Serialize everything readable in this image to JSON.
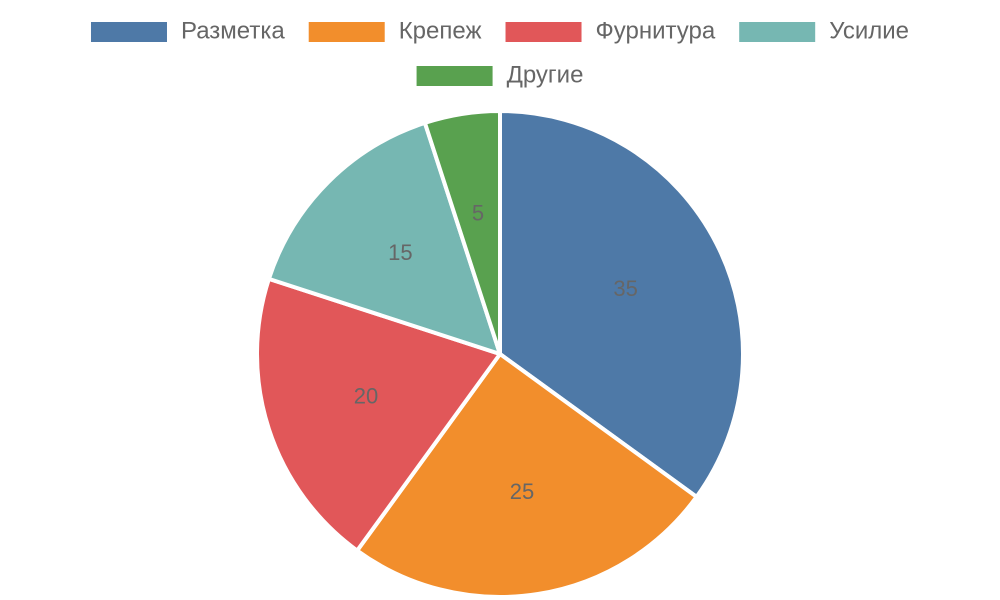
{
  "chart_data": {
    "type": "pie",
    "categories": [
      "Разметка",
      "Крепеж",
      "Фурнитура",
      "Усилие",
      "Другие"
    ],
    "values": [
      35,
      25,
      20,
      15,
      5
    ],
    "colors": [
      "#4e79a7",
      "#f28e2c",
      "#e15759",
      "#76b7b2",
      "#59a14f"
    ],
    "data_labels": [
      "35",
      "25",
      "20",
      "15",
      "5"
    ],
    "legend_position": "top",
    "start_angle": "12 o'clock",
    "direction": "clockwise"
  }
}
